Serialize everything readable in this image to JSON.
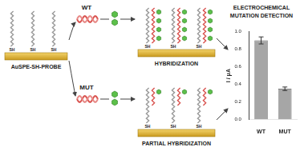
{
  "probe_electrode": {
    "label": "AuSPE-SH-PROBE",
    "thiol_label": "SH"
  },
  "targets": [
    {
      "label": "WT"
    },
    {
      "label": "MUT"
    }
  ],
  "outcomes": [
    {
      "label": "HYBRIDIZATION"
    },
    {
      "label": "PARTIAL HYBRIDIZATION"
    }
  ],
  "title": "ELECTROCHEMICAL MUTATION DETECTION",
  "chart_data": {
    "type": "bar",
    "categories": [
      "WT",
      "MUT"
    ],
    "values": [
      0.9,
      0.35
    ],
    "errors": [
      0.04,
      0.02
    ],
    "color": "#a6a6a6",
    "ylabel": "I / μA",
    "ylim": [
      0,
      1.0
    ],
    "yticks": [
      {
        "value": 0,
        "label": "0.0"
      },
      {
        "value": 0.2,
        "label": "0.2"
      },
      {
        "value": 0.4,
        "label": "0.4"
      },
      {
        "value": 0.6,
        "label": "0.6"
      },
      {
        "value": 0.8,
        "label": "0.8"
      },
      {
        "value": 1.0,
        "label": "1.0"
      }
    ],
    "grid": false
  }
}
